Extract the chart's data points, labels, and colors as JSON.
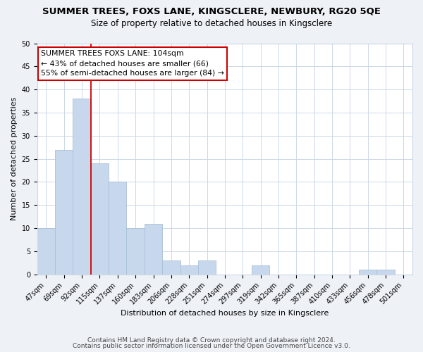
{
  "title": "SUMMER TREES, FOXS LANE, KINGSCLERE, NEWBURY, RG20 5QE",
  "subtitle": "Size of property relative to detached houses in Kingsclere",
  "xlabel": "Distribution of detached houses by size in Kingsclere",
  "ylabel": "Number of detached properties",
  "bar_labels": [
    "47sqm",
    "69sqm",
    "92sqm",
    "115sqm",
    "137sqm",
    "160sqm",
    "183sqm",
    "206sqm",
    "228sqm",
    "251sqm",
    "274sqm",
    "297sqm",
    "319sqm",
    "342sqm",
    "365sqm",
    "387sqm",
    "410sqm",
    "433sqm",
    "456sqm",
    "478sqm",
    "501sqm"
  ],
  "bar_heights": [
    10,
    27,
    38,
    24,
    20,
    10,
    11,
    3,
    2,
    3,
    0,
    0,
    2,
    0,
    0,
    0,
    0,
    0,
    1,
    1,
    0
  ],
  "bar_color": "#c8d8ec",
  "bar_edge_color": "#a8c0d8",
  "vline_x": 2.5,
  "vline_color": "#cc0000",
  "annotation_line1": "SUMMER TREES FOXS LANE: 104sqm",
  "annotation_line2": "← 43% of detached houses are smaller (66)",
  "annotation_line3": "55% of semi-detached houses are larger (84) →",
  "annotation_box_color": "#ffffff",
  "annotation_box_edge_color": "#cc0000",
  "ylim": [
    0,
    50
  ],
  "yticks": [
    0,
    5,
    10,
    15,
    20,
    25,
    30,
    35,
    40,
    45,
    50
  ],
  "footer_line1": "Contains HM Land Registry data © Crown copyright and database right 2024.",
  "footer_line2": "Contains public sector information licensed under the Open Government Licence v3.0.",
  "title_fontsize": 9.5,
  "subtitle_fontsize": 8.5,
  "axis_label_fontsize": 8,
  "tick_fontsize": 7,
  "annotation_fontsize": 7.8,
  "footer_fontsize": 6.5,
  "bg_color": "#eef2f7",
  "plot_bg_color": "#ffffff",
  "grid_color": "#ccd8e8"
}
